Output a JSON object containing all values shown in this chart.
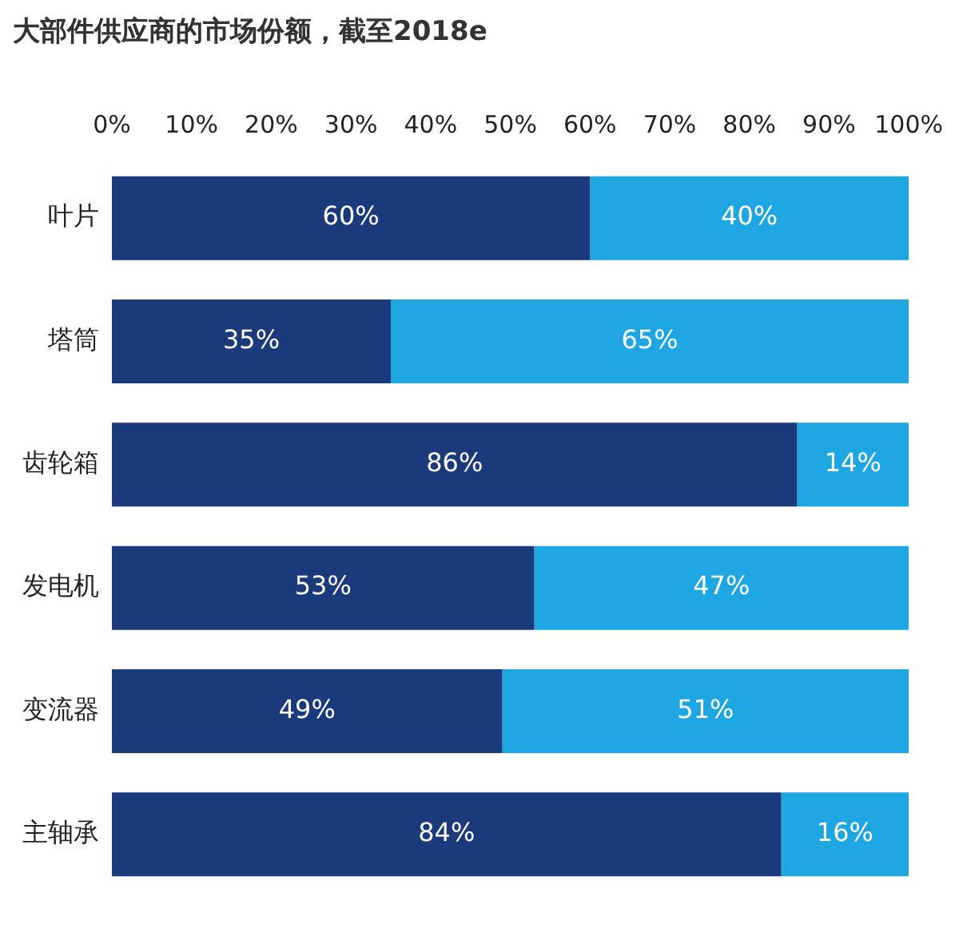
{
  "chart_data": {
    "type": "bar",
    "title": "大部件供应商的市场份额，截至2018e",
    "orientation": "horizontal",
    "stacked": true,
    "categories": [
      "叶片",
      "塔筒",
      "齿轮箱",
      "发电机",
      "变流器",
      "主轴承"
    ],
    "series": [
      {
        "color": "#1b3a7c",
        "values": [
          60,
          35,
          86,
          53,
          49,
          84
        ],
        "value_labels": [
          "60%",
          "35%",
          "86%",
          "53%",
          "49%",
          "84%"
        ]
      },
      {
        "color": "#1ea6e3",
        "values": [
          40,
          65,
          14,
          47,
          51,
          16
        ],
        "value_labels": [
          "40%",
          "65%",
          "14%",
          "47%",
          "51%",
          "16%"
        ]
      }
    ],
    "xlim": [
      0,
      100
    ],
    "xticks": [
      {
        "value": 0,
        "label": "0%"
      },
      {
        "value": 10,
        "label": "10%"
      },
      {
        "value": 20,
        "label": "20%"
      },
      {
        "value": 30,
        "label": "30%"
      },
      {
        "value": 40,
        "label": "40%"
      },
      {
        "value": 50,
        "label": "50%"
      },
      {
        "value": 60,
        "label": "60%"
      },
      {
        "value": 70,
        "label": "70%"
      },
      {
        "value": 80,
        "label": "80%"
      },
      {
        "value": 90,
        "label": "90%"
      },
      {
        "value": 100,
        "label": "100%"
      }
    ]
  }
}
